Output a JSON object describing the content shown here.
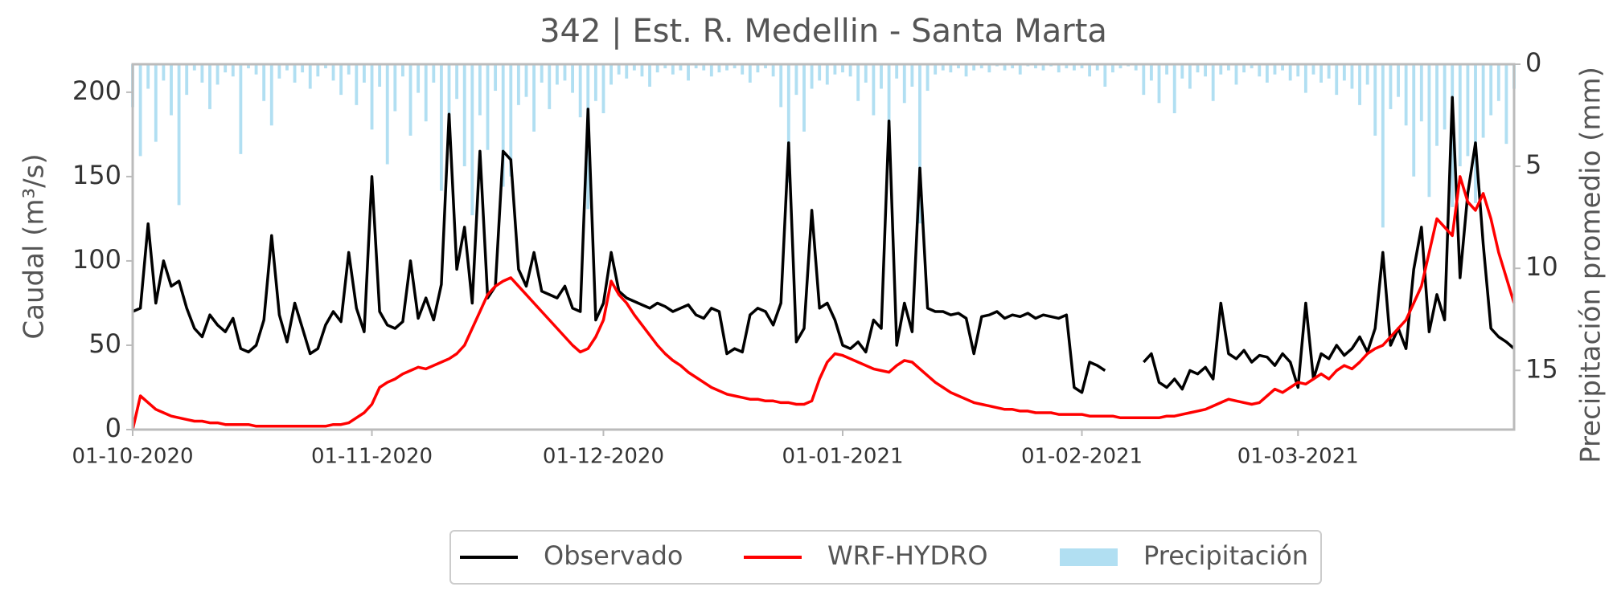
{
  "chart_data": {
    "type": "line",
    "title": "342 | Est. R. Medellin - Santa Marta",
    "y_label": "Caudal (m³/s)",
    "y2_label": "Precipitación promedio (mm)",
    "xlim": [
      "01-10-2020",
      "29-03-2021"
    ],
    "xticks": [
      "01-10-2020",
      "01-11-2020",
      "01-12-2020",
      "01-01-2021",
      "01-02-2021",
      "01-03-2021"
    ],
    "ylim": [
      0,
      216.6
    ],
    "yticks": [
      0,
      50,
      100,
      150,
      200
    ],
    "y2lim": [
      17.9,
      0
    ],
    "y2ticks": [
      0,
      5,
      10,
      15
    ],
    "legend": "lower center",
    "x": [
      "01-10-2020",
      "02-10-2020",
      "03-10-2020",
      "04-10-2020",
      "05-10-2020",
      "06-10-2020",
      "07-10-2020",
      "08-10-2020",
      "09-10-2020",
      "10-10-2020",
      "11-10-2020",
      "12-10-2020",
      "13-10-2020",
      "14-10-2020",
      "15-10-2020",
      "16-10-2020",
      "17-10-2020",
      "18-10-2020",
      "19-10-2020",
      "20-10-2020",
      "21-10-2020",
      "22-10-2020",
      "23-10-2020",
      "24-10-2020",
      "25-10-2020",
      "26-10-2020",
      "27-10-2020",
      "28-10-2020",
      "29-10-2020",
      "30-10-2020",
      "31-10-2020",
      "01-11-2020",
      "02-11-2020",
      "03-11-2020",
      "04-11-2020",
      "05-11-2020",
      "06-11-2020",
      "07-11-2020",
      "08-11-2020",
      "09-11-2020",
      "10-11-2020",
      "11-11-2020",
      "12-11-2020",
      "13-11-2020",
      "14-11-2020",
      "15-11-2020",
      "16-11-2020",
      "17-11-2020",
      "18-11-2020",
      "19-11-2020",
      "20-11-2020",
      "21-11-2020",
      "22-11-2020",
      "23-11-2020",
      "24-11-2020",
      "25-11-2020",
      "26-11-2020",
      "27-11-2020",
      "28-11-2020",
      "29-11-2020",
      "30-11-2020",
      "01-12-2020",
      "02-12-2020",
      "03-12-2020",
      "04-12-2020",
      "05-12-2020",
      "06-12-2020",
      "07-12-2020",
      "08-12-2020",
      "09-12-2020",
      "10-12-2020",
      "11-12-2020",
      "12-12-2020",
      "13-12-2020",
      "14-12-2020",
      "15-12-2020",
      "16-12-2020",
      "17-12-2020",
      "18-12-2020",
      "19-12-2020",
      "20-12-2020",
      "21-12-2020",
      "22-12-2020",
      "23-12-2020",
      "24-12-2020",
      "25-12-2020",
      "26-12-2020",
      "27-12-2020",
      "28-12-2020",
      "29-12-2020",
      "30-12-2020",
      "31-12-2020",
      "01-01-2021",
      "02-01-2021",
      "03-01-2021",
      "04-01-2021",
      "05-01-2021",
      "06-01-2021",
      "07-01-2021",
      "08-01-2021",
      "09-01-2021",
      "10-01-2021",
      "11-01-2021",
      "12-01-2021",
      "13-01-2021",
      "14-01-2021",
      "15-01-2021",
      "16-01-2021",
      "17-01-2021",
      "18-01-2021",
      "19-01-2021",
      "20-01-2021",
      "21-01-2021",
      "22-01-2021",
      "23-01-2021",
      "24-01-2021",
      "25-01-2021",
      "26-01-2021",
      "27-01-2021",
      "28-01-2021",
      "29-01-2021",
      "30-01-2021",
      "31-01-2021",
      "01-02-2021",
      "02-02-2021",
      "03-02-2021",
      "04-02-2021",
      "05-02-2021",
      "06-02-2021",
      "07-02-2021",
      "08-02-2021",
      "09-02-2021",
      "10-02-2021",
      "11-02-2021",
      "12-02-2021",
      "13-02-2021",
      "14-02-2021",
      "15-02-2021",
      "16-02-2021",
      "17-02-2021",
      "18-02-2021",
      "19-02-2021",
      "20-02-2021",
      "21-02-2021",
      "22-02-2021",
      "23-02-2021",
      "24-02-2021",
      "25-02-2021",
      "26-02-2021",
      "27-02-2021",
      "28-02-2021",
      "01-03-2021",
      "02-03-2021",
      "03-03-2021",
      "04-03-2021",
      "05-03-2021",
      "06-03-2021",
      "07-03-2021",
      "08-03-2021",
      "09-03-2021",
      "10-03-2021",
      "11-03-2021",
      "12-03-2021",
      "13-03-2021",
      "14-03-2021",
      "15-03-2021",
      "16-03-2021",
      "17-03-2021",
      "18-03-2021",
      "19-03-2021",
      "20-03-2021",
      "21-03-2021",
      "22-03-2021",
      "23-03-2021",
      "24-03-2021",
      "25-03-2021",
      "26-03-2021",
      "27-03-2021",
      "28-03-2021",
      "29-03-2021"
    ],
    "series": [
      {
        "name": "Observado",
        "color": "#000000",
        "type": "line",
        "values": [
          70,
          72,
          122,
          75,
          100,
          85,
          88,
          72,
          60,
          55,
          68,
          62,
          58,
          66,
          48,
          46,
          50,
          65,
          115,
          68,
          52,
          75,
          60,
          45,
          48,
          62,
          70,
          64,
          105,
          72,
          58,
          150,
          70,
          62,
          60,
          64,
          100,
          66,
          78,
          65,
          86,
          187,
          95,
          120,
          75,
          165,
          78,
          85,
          165,
          160,
          95,
          85,
          105,
          82,
          80,
          78,
          85,
          72,
          70,
          190,
          65,
          75,
          105,
          82,
          78,
          76,
          74,
          72,
          75,
          73,
          70,
          72,
          74,
          68,
          66,
          72,
          70,
          45,
          48,
          46,
          68,
          72,
          70,
          62,
          75,
          170,
          52,
          60,
          130,
          72,
          75,
          65,
          50,
          48,
          52,
          46,
          65,
          60,
          183,
          50,
          75,
          58,
          155,
          72,
          70,
          70,
          68,
          69,
          66,
          45,
          67,
          68,
          70,
          66,
          68,
          67,
          69,
          66,
          68,
          67,
          66,
          68,
          25,
          22,
          40,
          38,
          35,
          null,
          null,
          null,
          null,
          40,
          45,
          28,
          25,
          30,
          24,
          35,
          33,
          37,
          30,
          75,
          45,
          42,
          47,
          40,
          44,
          43,
          38,
          45,
          40,
          25,
          75,
          30,
          45,
          42,
          50,
          44,
          48,
          55,
          46,
          60,
          105,
          50,
          60,
          48,
          95,
          120,
          58,
          80,
          65,
          197,
          90,
          140,
          170,
          110,
          60,
          55,
          52,
          48
        ]
      },
      {
        "name": "WRF-HYDRO",
        "color": "#ff0000",
        "type": "line",
        "values": [
          0,
          20,
          16,
          12,
          10,
          8,
          7,
          6,
          5,
          5,
          4,
          4,
          3,
          3,
          3,
          3,
          2,
          2,
          2,
          2,
          2,
          2,
          2,
          2,
          2,
          2,
          3,
          3,
          4,
          7,
          10,
          15,
          25,
          28,
          30,
          33,
          35,
          37,
          36,
          38,
          40,
          42,
          45,
          50,
          60,
          70,
          80,
          85,
          88,
          90,
          85,
          80,
          75,
          70,
          65,
          60,
          55,
          50,
          46,
          48,
          55,
          65,
          88,
          80,
          75,
          68,
          62,
          56,
          50,
          45,
          41,
          38,
          34,
          31,
          28,
          25,
          23,
          21,
          20,
          19,
          18,
          18,
          17,
          17,
          16,
          16,
          15,
          15,
          17,
          30,
          40,
          45,
          44,
          42,
          40,
          38,
          36,
          35,
          34,
          38,
          41,
          40,
          36,
          32,
          28,
          25,
          22,
          20,
          18,
          16,
          15,
          14,
          13,
          12,
          12,
          11,
          11,
          10,
          10,
          10,
          9,
          9,
          9,
          9,
          8,
          8,
          8,
          8,
          7,
          7,
          7,
          7,
          7,
          7,
          8,
          8,
          9,
          10,
          11,
          12,
          14,
          16,
          18,
          17,
          16,
          15,
          16,
          20,
          24,
          22,
          25,
          28,
          27,
          30,
          33,
          30,
          35,
          38,
          36,
          40,
          45,
          48,
          50,
          55,
          60,
          65,
          75,
          85,
          105,
          125,
          120,
          115,
          150,
          135,
          130,
          140,
          125,
          105,
          90,
          75
        ]
      },
      {
        "name": "Precipitación",
        "color": "#87ceeb",
        "type": "bar",
        "axis": "y2",
        "values": [
          2.1,
          4.5,
          1.2,
          3.8,
          0.8,
          2.5,
          6.9,
          1.5,
          0.3,
          0.9,
          2.2,
          1.0,
          0.4,
          0.6,
          4.4,
          0.2,
          0.5,
          1.8,
          3.0,
          0.7,
          0.3,
          0.9,
          0.4,
          1.2,
          0.6,
          0.2,
          0.8,
          1.5,
          0.5,
          2.0,
          0.9,
          3.2,
          1.1,
          4.9,
          2.3,
          0.6,
          3.5,
          1.4,
          2.8,
          0.9,
          6.2,
          3.1,
          1.7,
          5.0,
          7.4,
          2.5,
          4.2,
          1.3,
          6.0,
          5.5,
          2.0,
          1.6,
          3.3,
          0.9,
          2.2,
          1.0,
          0.8,
          1.4,
          2.6,
          7.1,
          1.8,
          2.4,
          1.0,
          0.5,
          0.7,
          0.3,
          0.6,
          1.1,
          0.4,
          0.2,
          0.5,
          0.3,
          0.8,
          0.2,
          0.3,
          0.6,
          0.4,
          0.3,
          0.2,
          0.5,
          0.9,
          0.4,
          0.2,
          0.6,
          2.1,
          5.8,
          1.5,
          3.3,
          1.2,
          0.8,
          1.0,
          0.5,
          0.4,
          0.6,
          1.8,
          0.9,
          2.5,
          1.2,
          4.6,
          0.7,
          1.9,
          1.1,
          7.8,
          1.3,
          0.5,
          0.3,
          0.4,
          0.2,
          0.6,
          0.3,
          0.2,
          0.4,
          0.1,
          0.3,
          0.2,
          0.5,
          0.1,
          0.2,
          0.3,
          0.1,
          0.4,
          0.2,
          0.3,
          0.2,
          0.6,
          0.3,
          1.1,
          0.4,
          0.2,
          0.1,
          0.3,
          1.5,
          0.8,
          1.9,
          0.5,
          2.4,
          0.7,
          1.2,
          0.4,
          0.6,
          1.8,
          0.5,
          0.3,
          1.0,
          0.4,
          0.2,
          0.6,
          0.9,
          0.5,
          0.3,
          0.8,
          0.6,
          1.4,
          0.5,
          0.9,
          0.7,
          1.5,
          0.8,
          1.2,
          2.0,
          1.0,
          3.5,
          8.0,
          2.2,
          1.6,
          3.0,
          5.5,
          2.8,
          6.5,
          4.0,
          3.2,
          7.0,
          5.0,
          4.5,
          6.8,
          3.6,
          2.5,
          1.8,
          3.9,
          1.2
        ]
      }
    ]
  }
}
